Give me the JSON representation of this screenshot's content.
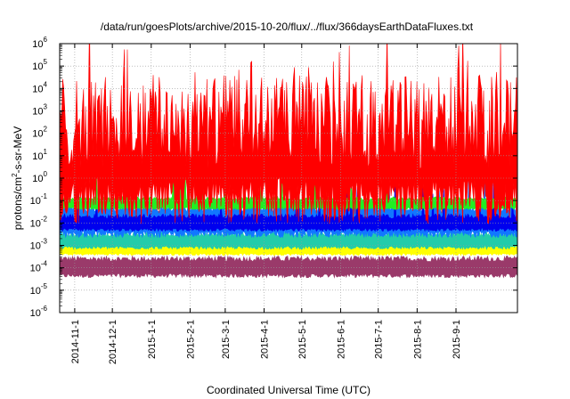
{
  "chart_data": {
    "type": "line",
    "title": "/data/run/goesPlots/archive/2015-10-20/flux/../flux/366daysEarthDataFluxes.txt",
    "xlabel": "Coordinated Universal Time (UTC)",
    "ylabel": "protons/cm2-s-sr-MeV",
    "ylabel_parts": {
      "base": "protons/cm",
      "sup": "2",
      "rest": "-s-sr-MeV"
    },
    "y_scale": "log",
    "ylim_exp": [
      -6,
      6
    ],
    "ytick_base": "10",
    "yticks_exp": [
      -6,
      -5,
      -4,
      -3,
      -2,
      -1,
      0,
      1,
      2,
      3,
      4,
      5,
      6
    ],
    "xlim": [
      "2014-10-20",
      "2015-10-20"
    ],
    "xtick_labels": [
      "2014-11-1",
      "2014-12-1",
      "2015-1-1",
      "2015-2-1",
      "2015-3-1",
      "2015-4-1",
      "2015-5-1",
      "2015-6-1",
      "2015-7-1",
      "2015-8-1",
      "2015-9-1"
    ],
    "xtick_dates": [
      "2014-11-01",
      "2014-12-01",
      "2015-01-01",
      "2015-02-01",
      "2015-03-01",
      "2015-04-01",
      "2015-05-01",
      "2015-06-01",
      "2015-07-01",
      "2015-08-01",
      "2015-09-01"
    ],
    "grid": true,
    "legend": "none",
    "series": [
      {
        "color": "#9a3a6a",
        "typical_low_log": -4.35,
        "typical_high_log": -3.6
      },
      {
        "color": "#ffff00",
        "typical_low_log": -3.4,
        "typical_high_log": -3.0
      },
      {
        "color": "#22ccaa",
        "typical_low_log": -3.1,
        "typical_high_log": -2.5
      },
      {
        "color": "#1177ff",
        "typical_low_log": -2.5,
        "typical_high_log": -1.3
      },
      {
        "color": "#0000ee",
        "typical_low_log": -2.3,
        "typical_high_log": -1.7
      },
      {
        "color": "#22ee22",
        "typical_low_log": -1.35,
        "typical_high_log": -0.9
      },
      {
        "color": "#ff0000",
        "typical_low_log": -1.0,
        "typical_high_log": 2.5
      }
    ]
  }
}
